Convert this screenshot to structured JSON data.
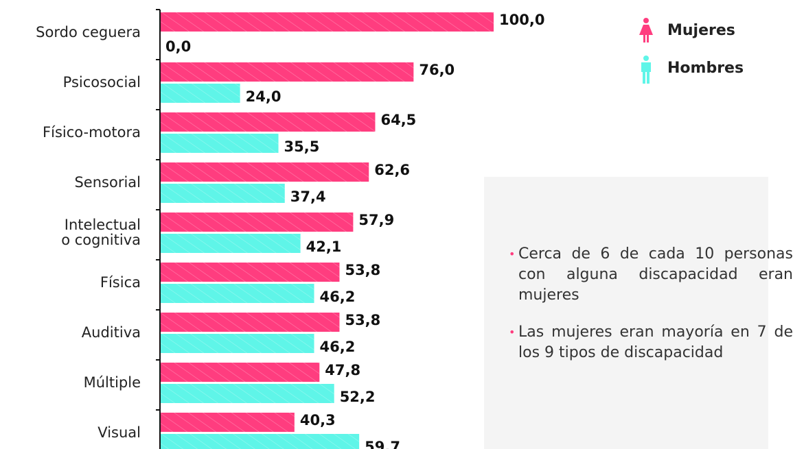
{
  "chart_data": {
    "type": "bar",
    "orientation": "horizontal",
    "categories": [
      "Sordo ceguera",
      "Psicosocial",
      "Físico-motora",
      "Sensorial",
      "Intelectual\no cognitiva",
      "Física",
      "Auditiva",
      "Múltiple",
      "Visual"
    ],
    "series": [
      {
        "name": "Mujeres",
        "color": "#ff3d7f",
        "values": [
          100.0,
          76.0,
          64.5,
          62.6,
          57.9,
          53.8,
          53.8,
          47.8,
          40.3
        ],
        "value_labels": [
          "100,0",
          "76,0",
          "64,5",
          "62,6",
          "57,9",
          "53,8",
          "53,8",
          "47,8",
          "40,3"
        ]
      },
      {
        "name": "Hombres",
        "color": "#5ff5e8",
        "values": [
          0.0,
          24.0,
          35.5,
          37.4,
          42.1,
          46.2,
          46.2,
          52.2,
          59.7
        ],
        "value_labels": [
          "0,0",
          "24,0",
          "35,5",
          "37,4",
          "42,1",
          "46,2",
          "46,2",
          "52,2",
          "59,7"
        ]
      }
    ],
    "xlim": [
      0,
      100
    ],
    "notes": [
      "Cerca de 6 de cada 10 personas con alguna discapacidad eran mujeres",
      "Las mujeres eran mayoría en 7 de los 9 tipos de discapacidad"
    ]
  }
}
